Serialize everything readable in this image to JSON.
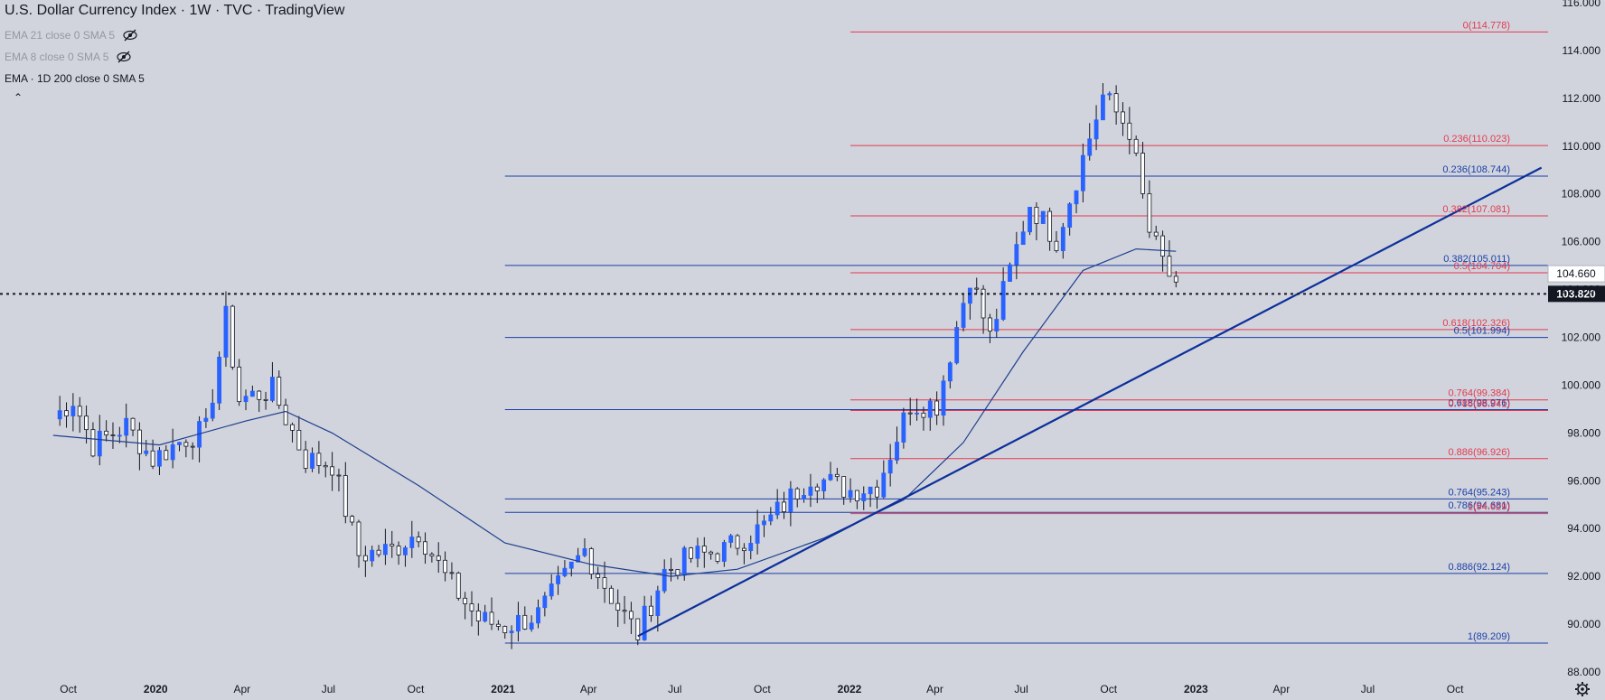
{
  "legend": {
    "title": "U.S. Dollar Currency Index · 1W · TVC · TradingView",
    "indicators": [
      {
        "label": "EMA 21 close 0 SMA 5",
        "visible": false
      },
      {
        "label": "EMA 8 close 0 SMA 5",
        "visible": false
      },
      {
        "label": "EMA · 1D 200 close 0 SMA 5",
        "visible": true
      }
    ]
  },
  "colors": {
    "background": "#d1d4dc",
    "candle_up": "#2962ff",
    "candle_down": "#ffffff",
    "candle_wick": "#131722",
    "fib_blue": "#1a3fa8",
    "fib_red": "#e53950",
    "trendline": "#0c2f9c",
    "ema": "#1e3f8f",
    "current_price_bg": "#131722"
  },
  "chart_data": {
    "type": "candlestick",
    "title": "U.S. Dollar Currency Index · 1W · TVC · TradingView",
    "x_axis_labels": [
      "Oct",
      "2020",
      "Apr",
      "Jul",
      "Oct",
      "2021",
      "Apr",
      "Jul",
      "Oct",
      "2022",
      "Apr",
      "Jul",
      "Oct",
      "2023",
      "Apr",
      "Jul",
      "Oct"
    ],
    "y_axis_labels": [
      "116.000",
      "114.000",
      "112.000",
      "110.000",
      "108.000",
      "106.000",
      "104.000",
      "102.000",
      "100.000",
      "98.000",
      "96.000",
      "94.000",
      "92.000",
      "90.000",
      "88.000"
    ],
    "ylim": [
      87.5,
      116.5
    ],
    "current_price": "103.820",
    "price_tag": "104.660",
    "candle_points": [
      [
        "2019-09-15",
        98.6
      ],
      [
        "2019-10-06",
        99.4
      ],
      [
        "2019-10-27",
        97.5
      ],
      [
        "2019-12-01",
        98.3
      ],
      [
        "2019-12-29",
        96.9
      ],
      [
        "2020-02-02",
        97.8
      ],
      [
        "2020-02-23",
        98.1
      ],
      [
        "2020-03-15",
        102.8
      ],
      [
        "2020-03-29",
        99.4
      ],
      [
        "2020-05-03",
        99.8
      ],
      [
        "2020-06-07",
        96.9
      ],
      [
        "2020-07-05",
        96.7
      ],
      [
        "2020-08-02",
        92.9
      ],
      [
        "2020-09-06",
        93.1
      ],
      [
        "2020-10-04",
        93.9
      ],
      [
        "2020-11-01",
        92.0
      ],
      [
        "2020-12-06",
        90.2
      ],
      [
        "2021-01-03",
        89.9
      ],
      [
        "2021-02-07",
        90.4
      ],
      [
        "2021-03-28",
        93.1
      ],
      [
        "2021-05-02",
        90.7
      ],
      [
        "2021-05-23",
        89.6
      ],
      [
        "2021-06-20",
        92.2
      ],
      [
        "2021-07-18",
        92.8
      ],
      [
        "2021-08-22",
        93.1
      ],
      [
        "2021-10-03",
        94.1
      ],
      [
        "2021-11-21",
        96.2
      ],
      [
        "2022-01-02",
        95.6
      ],
      [
        "2022-01-30",
        95.8
      ],
      [
        "2022-03-06",
        99.2
      ],
      [
        "2022-04-03",
        99.2
      ],
      [
        "2022-05-08",
        104.6
      ],
      [
        "2022-05-29",
        102.0
      ],
      [
        "2022-07-10",
        107.6
      ],
      [
        "2022-08-07",
        106.1
      ],
      [
        "2022-09-04",
        109.5
      ],
      [
        "2022-09-25",
        112.1
      ],
      [
        "2022-10-23",
        110.7
      ],
      [
        "2022-11-13",
        106.4
      ],
      [
        "2022-12-04",
        104.6
      ],
      [
        "2022-12-11",
        103.8
      ]
    ],
    "series": [
      {
        "name": "EMA · 1D 200 close 0 SMA 5",
        "points": [
          [
            "2019-09-15",
            97.9
          ],
          [
            "2020-01-05",
            97.5
          ],
          [
            "2020-04-05",
            98.5
          ],
          [
            "2020-05-17",
            98.9
          ],
          [
            "2020-07-05",
            98.0
          ],
          [
            "2020-10-04",
            95.8
          ],
          [
            "2021-01-03",
            93.4
          ],
          [
            "2021-04-04",
            92.5
          ],
          [
            "2021-06-27",
            92.0
          ],
          [
            "2021-09-05",
            92.3
          ],
          [
            "2021-12-05",
            93.6
          ],
          [
            "2022-02-27",
            95.2
          ],
          [
            "2022-05-01",
            97.6
          ],
          [
            "2022-07-03",
            101.4
          ],
          [
            "2022-09-04",
            104.8
          ],
          [
            "2022-10-30",
            105.7
          ],
          [
            "2022-12-11",
            105.6
          ]
        ]
      }
    ],
    "trendline": {
      "start": [
        "2021-05-23",
        89.5
      ],
      "end": [
        "2023-12-31",
        109.1
      ]
    },
    "fib_blue": {
      "start": "2021-01-03",
      "levels": [
        {
          "label": "0.236(108.744)",
          "price": 108.744
        },
        {
          "label": "0.382(105.011)",
          "price": 105.011
        },
        {
          "label": "0.5(101.994)",
          "price": 101.994
        },
        {
          "label": "0.618(98.976)",
          "price": 98.976
        },
        {
          "label": "0.764(95.243)",
          "price": 95.243
        },
        {
          "label": "0.786(94.681)",
          "price": 94.681
        },
        {
          "label": "0.886(92.124)",
          "price": 92.124
        },
        {
          "label": "1(89.209)",
          "price": 89.209
        }
      ]
    },
    "fib_red": {
      "start": "2022-01-02",
      "levels": [
        {
          "label": "0(114.778)",
          "price": 114.778
        },
        {
          "label": "0.236(110.023)",
          "price": 110.023
        },
        {
          "label": "0.382(107.081)",
          "price": 107.081
        },
        {
          "label": "0.5(104.704)",
          "price": 104.704
        },
        {
          "label": "0.618(102.326)",
          "price": 102.326
        },
        {
          "label": "0.764(99.384)",
          "price": 99.384
        },
        {
          "label": "0.786(98.941)",
          "price": 98.941
        },
        {
          "label": "0.886(96.926)",
          "price": 96.926
        },
        {
          "label": "1(94.629)",
          "price": 94.629
        }
      ]
    }
  }
}
